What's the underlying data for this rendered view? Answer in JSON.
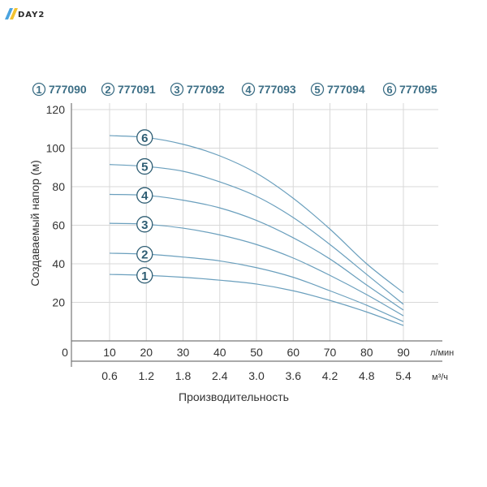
{
  "brand": {
    "text": "DAY2"
  },
  "chart_data": {
    "type": "line",
    "ylabel": "Создаваемый напор (м)",
    "xlabel": "Производительность",
    "y_ticks": [
      "20",
      "40",
      "60",
      "80",
      "100",
      "120"
    ],
    "origin_label": "0",
    "x_ticks_lmin": [
      "10",
      "20",
      "30",
      "40",
      "50",
      "60",
      "70",
      "80",
      "90"
    ],
    "x_ticks_m3h": [
      "0.6",
      "1.2",
      "1.8",
      "2.4",
      "3.0",
      "3.6",
      "4.2",
      "4.8",
      "5.4"
    ],
    "unit_lmin": "л/мин",
    "unit_m3h": "м³/ч",
    "ylim": [
      0,
      120
    ],
    "xlim": [
      0,
      90
    ],
    "grid": true,
    "x": [
      10,
      20,
      30,
      40,
      50,
      60,
      70,
      80,
      90
    ],
    "series": [
      {
        "name": "777090",
        "marker": "1",
        "values": [
          34.5,
          34,
          33,
          31.5,
          29.5,
          26,
          21,
          15,
          8
        ]
      },
      {
        "name": "777091",
        "marker": "2",
        "values": [
          45.5,
          45,
          43.5,
          41.5,
          38,
          33,
          26,
          18.5,
          10
        ]
      },
      {
        "name": "777092",
        "marker": "3",
        "values": [
          61,
          60.5,
          58.5,
          55,
          50,
          43,
          34,
          24,
          13
        ]
      },
      {
        "name": "777093",
        "marker": "4",
        "values": [
          76,
          75.5,
          73,
          69,
          62.5,
          53.5,
          42.5,
          29,
          16
        ]
      },
      {
        "name": "777094",
        "marker": "5",
        "values": [
          91.5,
          90.5,
          88,
          82.5,
          75,
          64,
          50,
          34.5,
          19
        ]
      },
      {
        "name": "777095",
        "marker": "6",
        "values": [
          106.5,
          105.5,
          102,
          96,
          87,
          74,
          58,
          40,
          25
        ]
      }
    ],
    "colors": {
      "curve": "#6a9fbd",
      "grid": "#d8d8d8",
      "legend": "#3d6f86",
      "marker": "#2e5d73"
    }
  }
}
